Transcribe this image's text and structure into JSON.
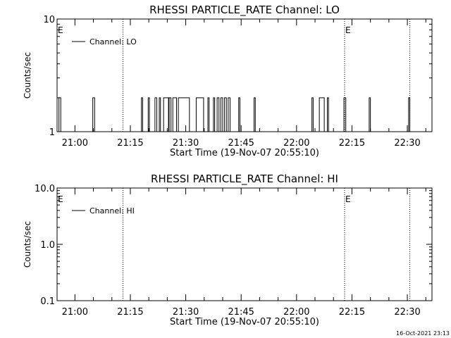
{
  "footer": {
    "timestamp": "16-Oct-2021 23:13"
  },
  "chart_data": [
    {
      "type": "line",
      "title": "RHESSI PARTICLE_RATE Channel: LO",
      "xlabel": "Start Time (19-Nov-07 20:55:10)",
      "ylabel": "Counts/sec",
      "scale": "log",
      "xlim": [
        "20:55:10",
        "22:36:40"
      ],
      "ylim": [
        1,
        10
      ],
      "yticks": [
        {
          "value": 1,
          "label": "1"
        },
        {
          "value": 10,
          "label": "10"
        }
      ],
      "xticks": [
        "21:00",
        "21:15",
        "21:30",
        "21:45",
        "22:00",
        "22:15",
        "22:30"
      ],
      "legend": {
        "position": "top-left",
        "label": "Channel: LO"
      },
      "markers": [
        {
          "time": "20:55:10",
          "label": "E"
        },
        {
          "time": "21:13:00",
          "label": ""
        },
        {
          "time": "22:13:00",
          "label": "E"
        },
        {
          "time": "22:30:40",
          "label": ""
        }
      ],
      "series": [
        {
          "name": "Channel: LO",
          "spikes": [
            [
              "20:55:40",
              "20:56:10"
            ],
            [
              "21:04:50",
              "21:05:20"
            ],
            [
              "21:18:00",
              "21:18:20"
            ],
            [
              "21:19:50",
              "21:20:10"
            ],
            [
              "21:21:40",
              "21:22:10"
            ],
            [
              "21:22:50",
              "21:23:10"
            ],
            [
              "21:24:00",
              "21:25:20"
            ],
            [
              "21:25:30",
              "21:26:00"
            ],
            [
              "21:26:30",
              "21:27:30"
            ],
            [
              "21:28:00",
              "21:31:00"
            ],
            [
              "21:32:50",
              "21:34:50"
            ],
            [
              "21:36:00",
              "21:36:20"
            ],
            [
              "21:37:30",
              "21:37:50"
            ],
            [
              "21:38:30",
              "21:39:00"
            ],
            [
              "21:39:30",
              "21:40:00"
            ],
            [
              "21:40:30",
              "21:41:00"
            ],
            [
              "21:41:30",
              "21:42:00"
            ],
            [
              "21:44:20",
              "21:44:40"
            ],
            [
              "21:48:30",
              "21:48:50"
            ],
            [
              "22:04:10",
              "22:04:30"
            ],
            [
              "22:06:10",
              "22:07:30"
            ],
            [
              "22:08:20",
              "22:08:40"
            ],
            [
              "22:12:50",
              "22:13:20"
            ],
            [
              "22:19:40",
              "22:20:00"
            ],
            [
              "22:30:20",
              "22:30:40"
            ]
          ]
        }
      ]
    },
    {
      "type": "line",
      "title": "RHESSI PARTICLE_RATE Channel: HI",
      "xlabel": "Start Time (19-Nov-07 20:55:10)",
      "ylabel": "Counts/sec",
      "scale": "log",
      "xlim": [
        "20:55:10",
        "22:36:40"
      ],
      "ylim": [
        0.1,
        10
      ],
      "yticks": [
        {
          "value": 0.1,
          "label": "0.1"
        },
        {
          "value": 1,
          "label": "1.0"
        },
        {
          "value": 10,
          "label": "10.0"
        }
      ],
      "xticks": [
        "21:00",
        "21:15",
        "21:30",
        "21:45",
        "22:00",
        "22:15",
        "22:30"
      ],
      "legend": {
        "position": "top-left",
        "label": "Channel: HI"
      },
      "markers": [
        {
          "time": "20:55:10",
          "label": "E"
        },
        {
          "time": "21:13:00",
          "label": ""
        },
        {
          "time": "22:13:00",
          "label": "E"
        },
        {
          "time": "22:30:40",
          "label": ""
        }
      ],
      "series": [
        {
          "name": "Channel: HI",
          "spikes": []
        }
      ]
    }
  ]
}
